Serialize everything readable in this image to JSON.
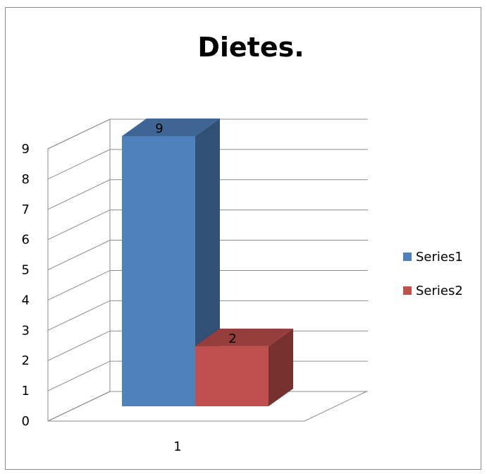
{
  "chart_data": {
    "type": "bar",
    "title": "Dietes.",
    "categories": [
      "1"
    ],
    "series": [
      {
        "name": "Series1",
        "values": [
          9
        ],
        "color": "#4f81bd"
      },
      {
        "name": "Series2",
        "values": [
          2
        ],
        "color": "#c0504d"
      }
    ],
    "ylim": [
      0,
      9
    ],
    "yticks": [
      "0",
      "1",
      "2",
      "3",
      "4",
      "5",
      "6",
      "7",
      "8",
      "9"
    ],
    "grid": true,
    "legend_position": "right",
    "data_labels": true,
    "style": "3d-column"
  }
}
